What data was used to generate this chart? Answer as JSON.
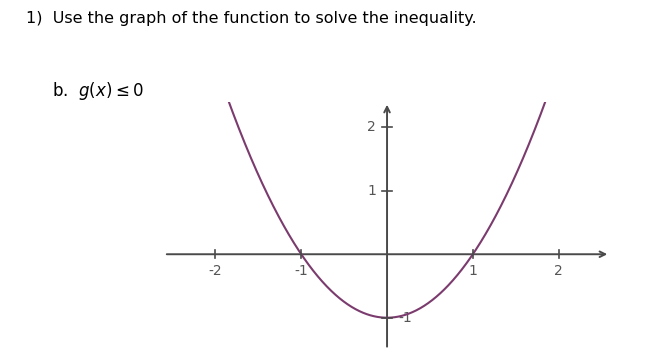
{
  "title_text": "1)  Use the graph of the function to solve the inequality.",
  "subtitle_text": "b.  $g(x) \\leq 0$",
  "curve_color": "#7B3B6E",
  "axis_color": "#4a4a4a",
  "background_color": "#ffffff",
  "xlim": [
    -2.6,
    2.6
  ],
  "ylim": [
    -1.5,
    2.4
  ],
  "x_ticks": [
    -2,
    -1,
    1,
    2
  ],
  "y_ticks_pos": [
    1,
    2
  ],
  "y_ticks_neg": [
    -1
  ],
  "x_range": [
    -2.35,
    2.35
  ],
  "tick_size": 0.06
}
